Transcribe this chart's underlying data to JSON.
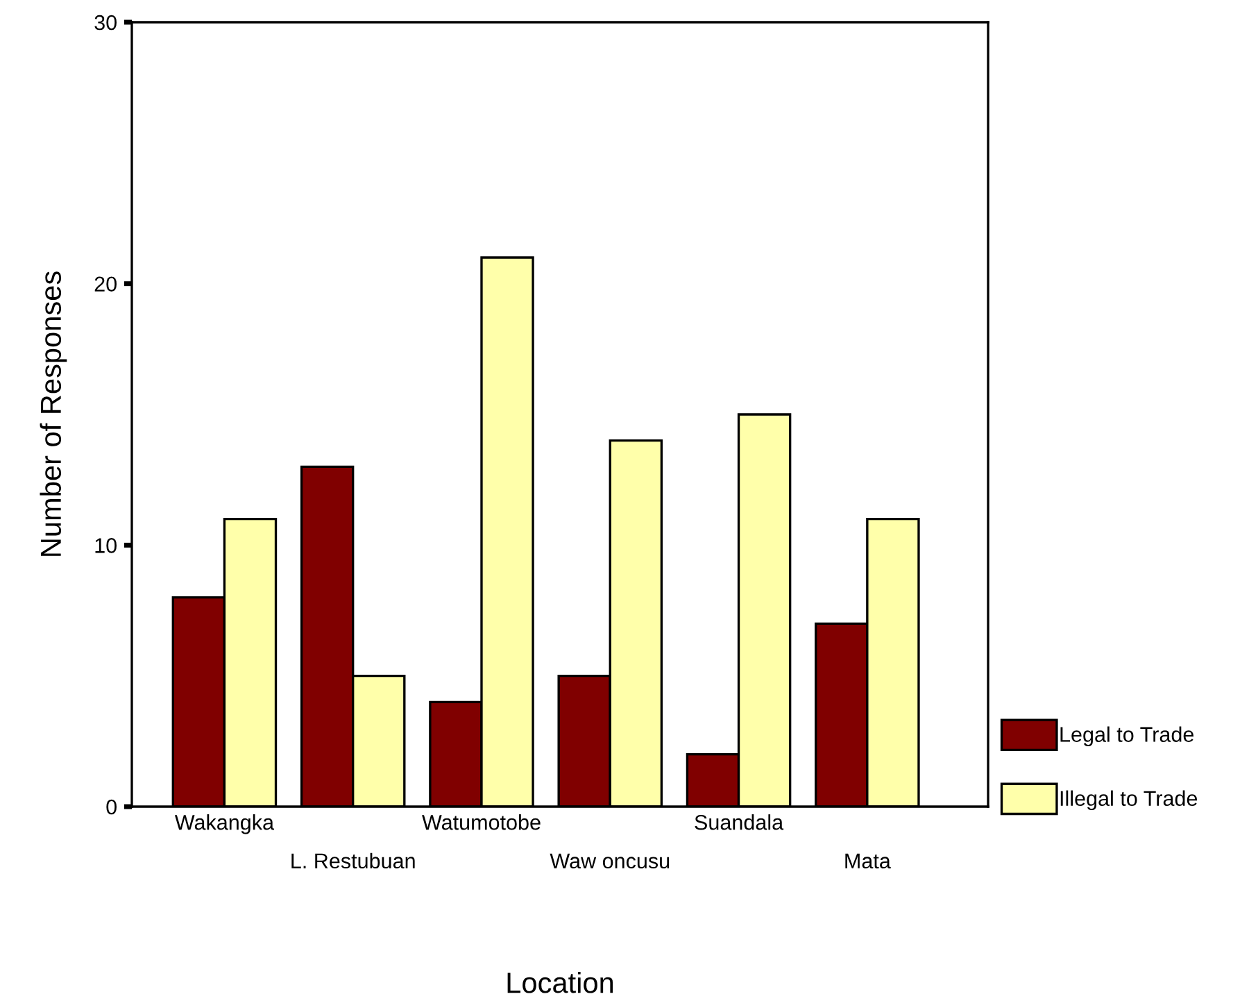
{
  "chart_data": {
    "type": "bar",
    "categories": [
      "Wakangka",
      "L. Restubuan",
      "Watumotobe",
      "Waw oncusu",
      "Suandala",
      "Mata"
    ],
    "series": [
      {
        "name": "Legal to Trade",
        "color": "#800000",
        "values": [
          8,
          13,
          4,
          5,
          2,
          7
        ]
      },
      {
        "name": "Illegal to Trade",
        "color": "#ffffaa",
        "values": [
          11,
          5,
          21,
          14,
          15,
          11
        ]
      }
    ],
    "xlabel": "Location",
    "ylabel": "Number of Responses",
    "ylim": [
      0,
      30
    ],
    "yticks": [
      0,
      10,
      20,
      30
    ],
    "grid": false,
    "legend": "right"
  }
}
